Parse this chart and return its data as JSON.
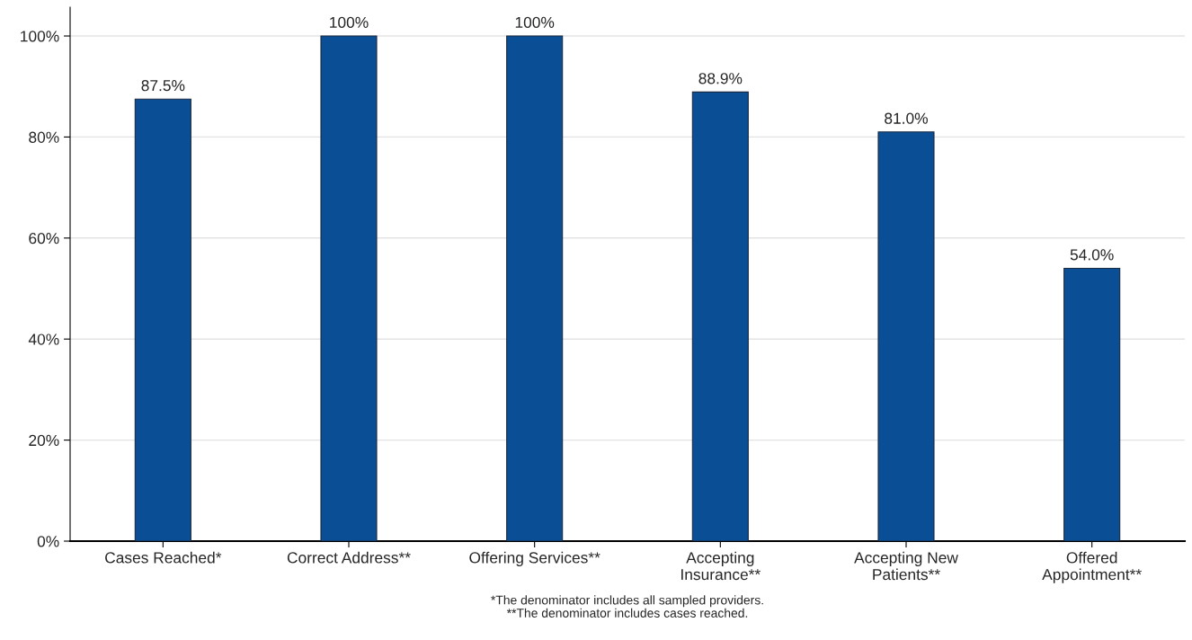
{
  "chart_data": {
    "type": "bar",
    "categories": [
      "Cases Reached*",
      "Correct Address**",
      "Offering Services**",
      "Accepting\nInsurance**",
      "Accepting New\nPatients**",
      "Offered\nAppointment**"
    ],
    "values": [
      87.5,
      100,
      100,
      88.9,
      81.0,
      54.0
    ],
    "value_labels": [
      "87.5%",
      "100%",
      "100%",
      "88.9%",
      "81.0%",
      "54.0%"
    ],
    "color": "#0a4f96",
    "ylim": [
      0,
      105.7
    ],
    "yticks": [
      {
        "value": 0,
        "label": "0%"
      },
      {
        "value": 20,
        "label": "20%"
      },
      {
        "value": 40,
        "label": "40%"
      },
      {
        "value": 60,
        "label": "60%"
      },
      {
        "value": 80,
        "label": "80%"
      },
      {
        "value": 100,
        "label": "100%"
      }
    ],
    "grid": "y",
    "annotations": [
      "*The denominator includes all sampled providers.\n**The denominator includes cases reached."
    ]
  }
}
